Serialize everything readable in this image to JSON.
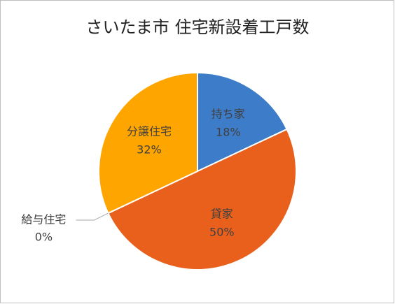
{
  "chart_data": {
    "type": "pie",
    "title": "さいたま市 住宅新設着工戸数",
    "categories": [
      "持ち家",
      "貸家",
      "給与住宅",
      "分譲住宅"
    ],
    "values": [
      18,
      50,
      0,
      32
    ],
    "value_labels": [
      "18%",
      "50%",
      "0%",
      "32%"
    ],
    "colors": [
      "#3d7cc9",
      "#e8601c",
      "#a5a5a5",
      "#ffa500"
    ]
  }
}
